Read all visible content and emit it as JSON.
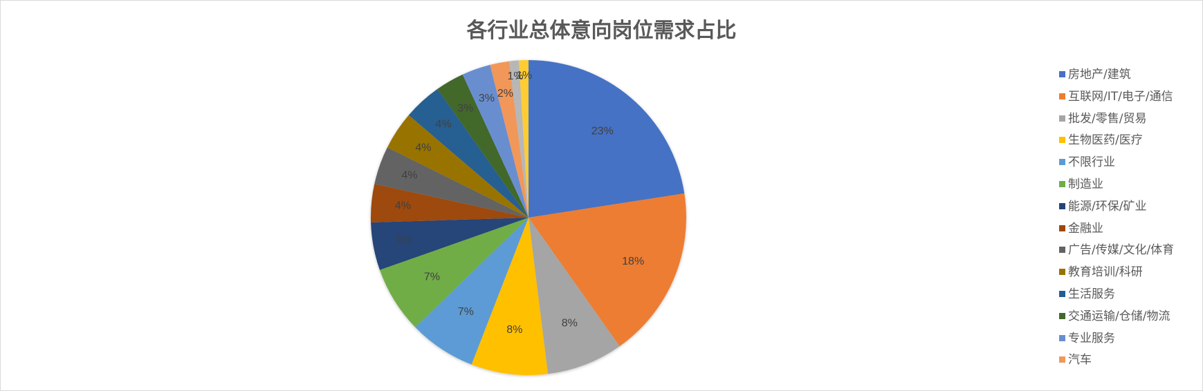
{
  "chart_data": {
    "type": "pie",
    "title": "各行业总体意向岗位需求占比",
    "categories": [
      "房地产/建筑",
      "互联网/IT/电子/通信",
      "批发/零售/贸易",
      "生物医药/医疗",
      "不限行业",
      "制造业",
      "能源/环保/矿业",
      "金融业",
      "广告/传媒/文化/体育",
      "教育培训/科研",
      "生活服务",
      "交通运输/仓储/物流",
      "专业服务",
      "汽车",
      "",
      ""
    ],
    "values": [
      23,
      18,
      8,
      8,
      7,
      7,
      5,
      4,
      4,
      4,
      4,
      3,
      3,
      2,
      1,
      1
    ],
    "data_labels": [
      "23%",
      "18%",
      "8%",
      "8%",
      "7%",
      "7%",
      "5%",
      "4%",
      "4%",
      "4%",
      "4%",
      "3%",
      "3%",
      "2%",
      "1%",
      "1%"
    ],
    "colors": [
      "#4472c4",
      "#ed7d31",
      "#a5a5a5",
      "#ffc000",
      "#5b9bd5",
      "#70ad47",
      "#264478",
      "#9e480e",
      "#636363",
      "#997300",
      "#255e91",
      "#43682b",
      "#698ed0",
      "#f1975a",
      "#b7b7b7",
      "#ffcd33"
    ],
    "legend_position": "right",
    "legend_entries": [
      "房地产/建筑",
      "互联网/IT/电子/通信",
      "批发/零售/贸易",
      "生物医药/医疗",
      "不限行业",
      "制造业",
      "能源/环保/矿业",
      "金融业",
      "广告/传媒/文化/体育",
      "教育培训/科研",
      "生活服务",
      "交通运输/仓储/物流",
      "专业服务",
      "汽车"
    ]
  }
}
